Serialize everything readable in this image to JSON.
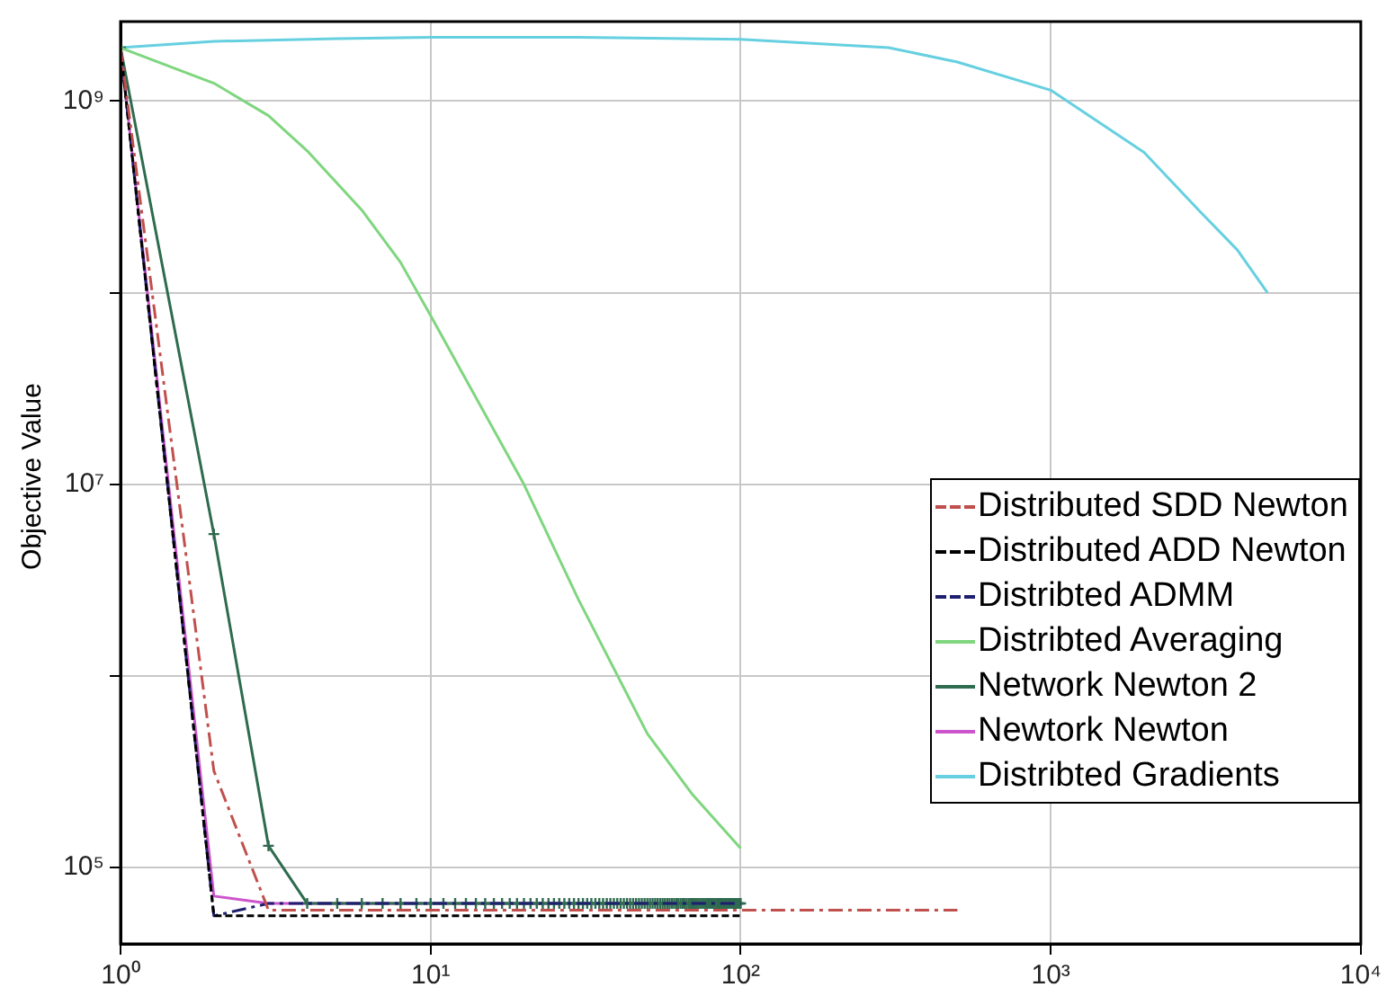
{
  "chart_data": {
    "type": "line",
    "ylabel": "Objective Value",
    "log": "xy",
    "grid": true,
    "legend": "bottom right",
    "xlim": [
      1,
      10000
    ],
    "xticks": [
      {
        "value": 1,
        "label": "10⁰"
      },
      {
        "value": 10,
        "label": "10¹"
      },
      {
        "value": 100,
        "label": "10²"
      },
      {
        "value": 1000,
        "label": "10³"
      },
      {
        "value": 10000,
        "label": "10⁴"
      }
    ],
    "ylim": [
      40000,
      2600000000
    ],
    "yticks": [
      {
        "value": 100000,
        "label": "10⁵"
      },
      {
        "value": 1000000,
        "label": null
      },
      {
        "value": 10000000,
        "label": "10⁷"
      },
      {
        "value": 100000000,
        "label": null
      },
      {
        "value": 1000000000,
        "label": "10⁹"
      }
    ],
    "series": [
      {
        "name": "Distributed SDD Newton",
        "color": "#c0504d",
        "line_style": "dashdot",
        "x": [
          1,
          2,
          3,
          500
        ],
        "values": [
          1900000000,
          320000,
          60000,
          60000
        ]
      },
      {
        "name": "Distributed ADD Newton",
        "color": "#000000",
        "line_style": "dashed",
        "x": [
          1,
          2,
          100
        ],
        "values": [
          1900000000,
          56000,
          56000
        ]
      },
      {
        "name": "Distribted ADMM",
        "color": "#1f1f70",
        "line_style": "dashdot",
        "x": [
          1,
          2,
          3,
          100
        ],
        "values": [
          1900000000,
          56000,
          65000,
          65000
        ]
      },
      {
        "name": "Distribted Averaging",
        "color": "#7fd67f",
        "line_style": "solid",
        "x": [
          1,
          2,
          3,
          4,
          6,
          8,
          10,
          20,
          30,
          50,
          70,
          100
        ],
        "values": [
          1900000000,
          1240000000,
          840000000,
          550000000,
          270000000,
          144000000,
          76000000,
          10000000,
          2500000,
          500000,
          240000,
          126000
        ]
      },
      {
        "name": "Network Newton 2",
        "color": "#2e6b4f",
        "line_style": "solid",
        "marker": "cross",
        "x": [
          1,
          2,
          3,
          4,
          5,
          6,
          7,
          8,
          9,
          10,
          11,
          12,
          13,
          14,
          15,
          16,
          17,
          18,
          19,
          20,
          21,
          22,
          23,
          24,
          25,
          26,
          27,
          28,
          29,
          30,
          31,
          32,
          33,
          34,
          35,
          36,
          37,
          38,
          39,
          40,
          41,
          42,
          43,
          44,
          45,
          46,
          47,
          48,
          49,
          50,
          51,
          52,
          53,
          54,
          55,
          56,
          57,
          58,
          59,
          60,
          61,
          62,
          63,
          64,
          65,
          66,
          67,
          68,
          69,
          70,
          71,
          72,
          73,
          74,
          75,
          76,
          77,
          78,
          79,
          80,
          81,
          82,
          83,
          84,
          85,
          86,
          87,
          88,
          89,
          90,
          91,
          92,
          93,
          94,
          95,
          96,
          97,
          98,
          99,
          100
        ],
        "values": [
          1900000000,
          5500000,
          130000,
          65000,
          65000,
          65000,
          65000,
          65000,
          65000,
          65000,
          65000,
          65000,
          65000,
          65000,
          65000,
          65000,
          65000,
          65000,
          65000,
          65000,
          65000,
          65000,
          65000,
          65000,
          65000,
          65000,
          65000,
          65000,
          65000,
          65000,
          65000,
          65000,
          65000,
          65000,
          65000,
          65000,
          65000,
          65000,
          65000,
          65000,
          65000,
          65000,
          65000,
          65000,
          65000,
          65000,
          65000,
          65000,
          65000,
          65000,
          65000,
          65000,
          65000,
          65000,
          65000,
          65000,
          65000,
          65000,
          65000,
          65000,
          65000,
          65000,
          65000,
          65000,
          65000,
          65000,
          65000,
          65000,
          65000,
          65000,
          65000,
          65000,
          65000,
          65000,
          65000,
          65000,
          65000,
          65000,
          65000,
          65000,
          65000,
          65000,
          65000,
          65000,
          65000,
          65000,
          65000,
          65000,
          65000,
          65000,
          65000,
          65000,
          65000,
          65000,
          65000,
          65000,
          65000,
          65000,
          65000,
          65000
        ]
      },
      {
        "name": "Newtork Newton",
        "color": "#cc55cc",
        "line_style": "solid",
        "x": [
          1,
          2,
          3,
          100
        ],
        "values": [
          1900000000,
          71000,
          65000,
          65000
        ]
      },
      {
        "name": "Distribted Gradients",
        "color": "#66d0e0",
        "line_style": "solid",
        "x": [
          1,
          2,
          5,
          10,
          30,
          100,
          300,
          500,
          1000,
          2000,
          3000,
          4000,
          5000
        ],
        "values": [
          1900000000,
          2050000000,
          2120000000,
          2150000000,
          2150000000,
          2100000000,
          1900000000,
          1600000000,
          1140000000,
          540000000,
          270000000,
          167000000,
          100000000
        ]
      }
    ]
  }
}
